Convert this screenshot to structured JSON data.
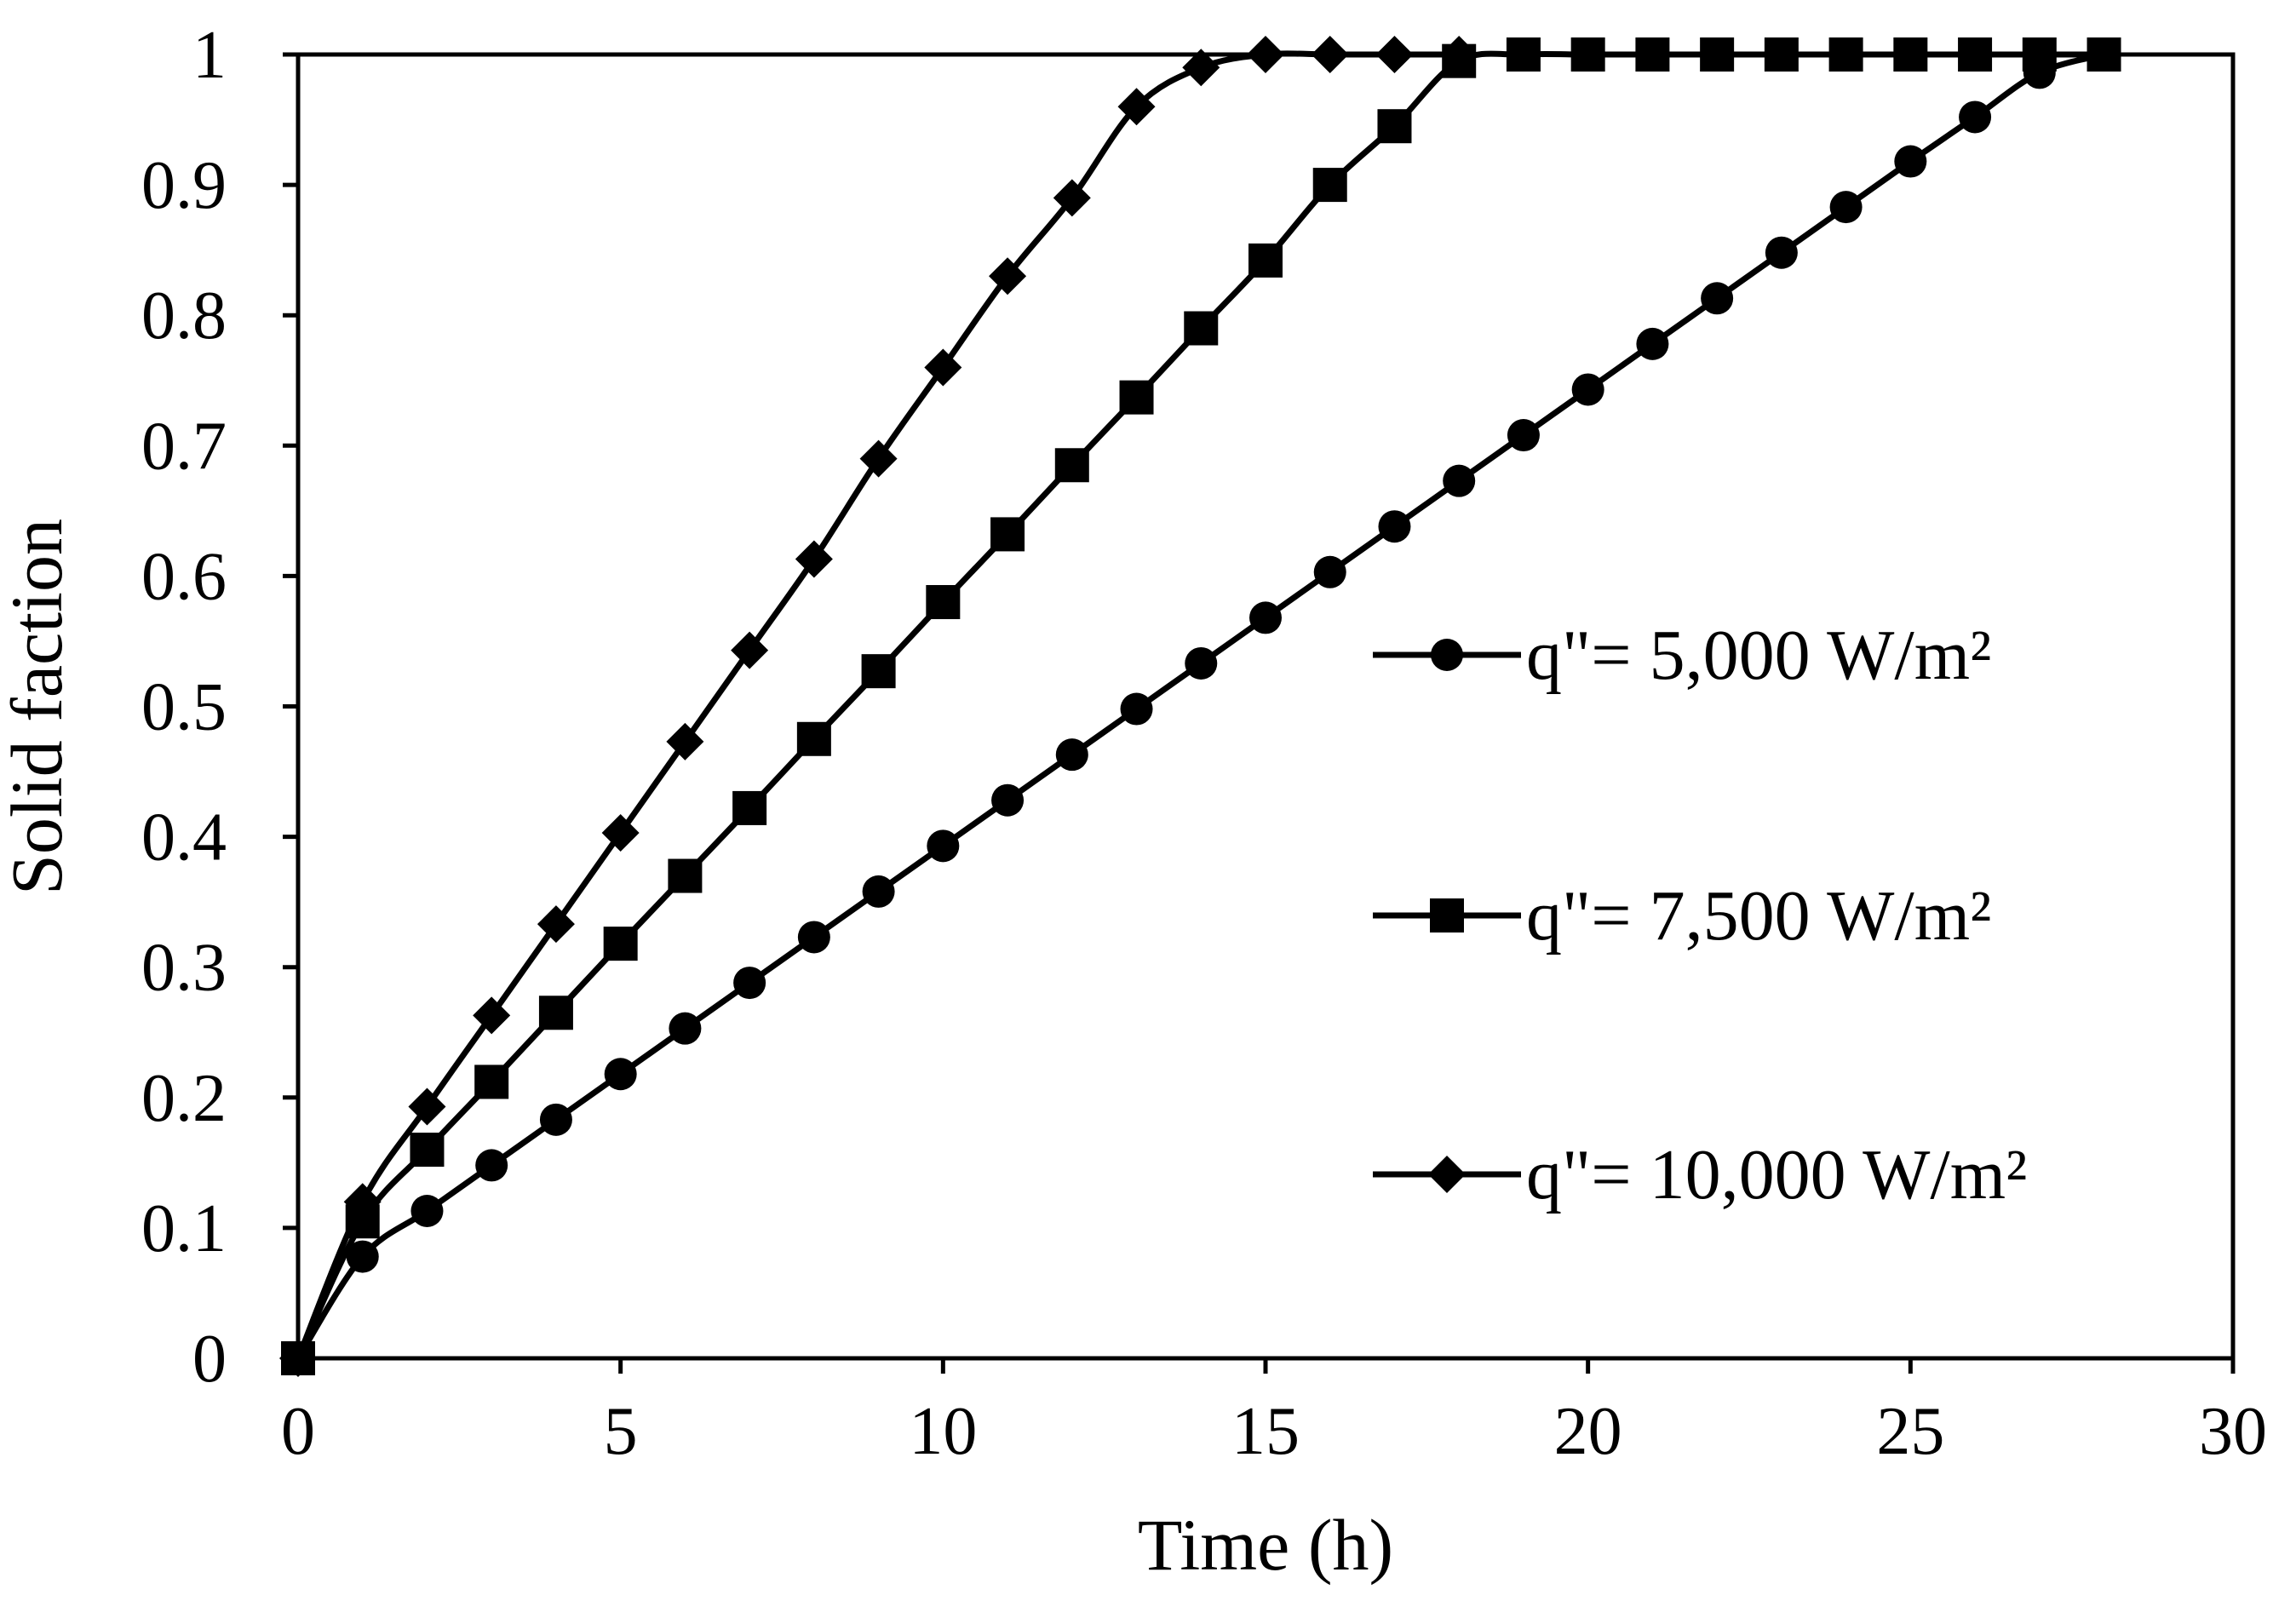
{
  "chart_data": {
    "type": "line",
    "title": "",
    "xlabel": "Time (h)",
    "ylabel": "Solid faction",
    "xlim": [
      0,
      30
    ],
    "ylim": [
      0,
      1
    ],
    "xticks": [
      0,
      5,
      10,
      15,
      20,
      25,
      30
    ],
    "yticks": [
      0,
      0.1,
      0.2,
      0.3,
      0.4,
      0.5,
      0.6,
      0.7,
      0.8,
      0.9,
      1
    ],
    "grid": false,
    "legend_position": "right",
    "series": [
      {
        "name": "q\"= 5,000 W/m²",
        "marker": "circle",
        "x": [
          0,
          1,
          2,
          3,
          4,
          5,
          6,
          7,
          8,
          9,
          10,
          11,
          12,
          13,
          14,
          15,
          16,
          17,
          18,
          19,
          20,
          21,
          22,
          23,
          24,
          25,
          26,
          27,
          28
        ],
        "y": [
          0,
          0.078,
          0.113,
          0.148,
          0.183,
          0.218,
          0.253,
          0.288,
          0.323,
          0.358,
          0.393,
          0.428,
          0.463,
          0.498,
          0.533,
          0.568,
          0.603,
          0.638,
          0.673,
          0.708,
          0.743,
          0.778,
          0.813,
          0.848,
          0.883,
          0.918,
          0.952,
          0.986,
          1.0
        ]
      },
      {
        "name": "q\"= 7,500 W/m²",
        "marker": "square",
        "x": [
          0,
          1,
          2,
          3,
          4,
          5,
          6,
          7,
          8,
          9,
          10,
          11,
          12,
          13,
          14,
          15,
          16,
          17,
          18,
          19,
          20,
          21,
          22,
          23,
          24,
          25,
          26,
          27,
          28
        ],
        "y": [
          0,
          0.105,
          0.16,
          0.212,
          0.265,
          0.318,
          0.37,
          0.422,
          0.475,
          0.527,
          0.58,
          0.632,
          0.685,
          0.737,
          0.79,
          0.842,
          0.9,
          0.945,
          0.995,
          1.0,
          1.0,
          1.0,
          1.0,
          1.0,
          1.0,
          1.0,
          1.0,
          1.0,
          1.0
        ]
      },
      {
        "name": "q\"= 10,000 W/m²",
        "marker": "diamond",
        "x": [
          0,
          1,
          2,
          3,
          4,
          5,
          6,
          7,
          8,
          9,
          10,
          11,
          12,
          13,
          14,
          15,
          16,
          17,
          18
        ],
        "y": [
          0,
          0.12,
          0.193,
          0.263,
          0.333,
          0.403,
          0.473,
          0.543,
          0.613,
          0.69,
          0.76,
          0.83,
          0.89,
          0.96,
          0.99,
          1.0,
          1.0,
          1.0,
          1.0
        ]
      }
    ]
  }
}
